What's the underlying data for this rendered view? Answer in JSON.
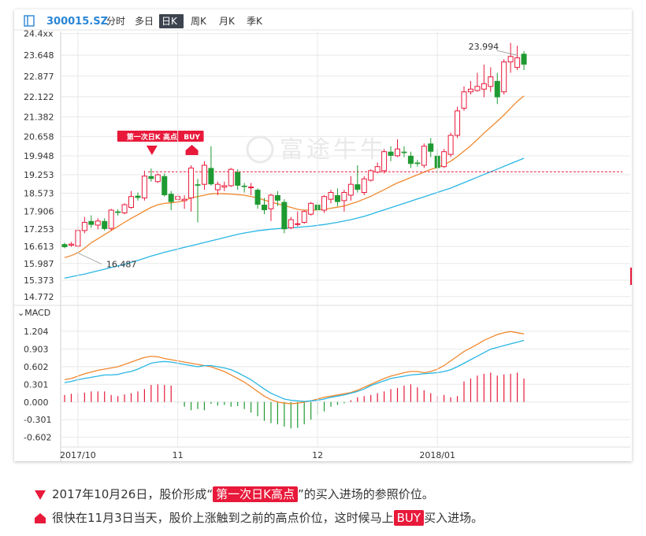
{
  "colors": {
    "up": "#e8193a",
    "down": "#1f9a32",
    "ma_short": "#f0882e",
    "ma_long": "#28b6e4",
    "macd_dif": "#28b6e4",
    "macd_dea": "#f0882e",
    "marker": "#e8193a",
    "grid": "#e8e8e8",
    "axis_text": "#333333"
  },
  "toolbar": {
    "code": "300015.SZ",
    "tabs": [
      {
        "label": "分时",
        "active": false
      },
      {
        "label": "多日",
        "active": false
      },
      {
        "label": "日K",
        "active": true
      },
      {
        "label": "周K",
        "active": false
      },
      {
        "label": "月K",
        "active": false
      },
      {
        "label": "季K",
        "active": false
      }
    ]
  },
  "watermark": "富途牛牛",
  "chart_data": [
    {
      "type": "candlestick",
      "title": "300015.SZ 日K",
      "y_ticks": [
        "24.4xx",
        "23.648",
        "22.877",
        "22.122",
        "21.382",
        "20.658",
        "19.948",
        "19.253",
        "18.573",
        "17.906",
        "17.253",
        "16.613",
        "15.987",
        "15.373",
        "14.772"
      ],
      "y_tick_values": [
        24.443,
        23.648,
        22.877,
        22.122,
        21.382,
        20.658,
        19.948,
        19.253,
        18.573,
        17.906,
        17.253,
        16.613,
        15.987,
        15.373,
        14.772
      ],
      "ylim": [
        14.65,
        24.52
      ],
      "x_ticks": [
        {
          "label": "2017/10",
          "index": 2
        },
        {
          "label": "11",
          "index": 17
        },
        {
          "label": "12",
          "index": 38
        },
        {
          "label": "2018/01",
          "index": 56
        }
      ],
      "candles": [
        [
          16.7,
          16.59,
          16.75,
          16.55
        ],
        [
          16.66,
          16.7,
          16.78,
          16.6
        ],
        [
          16.63,
          17.2,
          17.35,
          16.55
        ],
        [
          17.2,
          17.5,
          17.7,
          17.1
        ],
        [
          17.55,
          17.41,
          17.76,
          17.3
        ],
        [
          17.4,
          17.55,
          17.65,
          17.25
        ],
        [
          17.55,
          17.26,
          17.65,
          17.2
        ],
        [
          17.28,
          17.95,
          18.0,
          17.2
        ],
        [
          17.9,
          17.85,
          17.98,
          17.75
        ],
        [
          17.85,
          18.15,
          18.2,
          17.8
        ],
        [
          18.05,
          18.45,
          18.65,
          18.0
        ],
        [
          18.48,
          18.4,
          18.6,
          18.3
        ],
        [
          18.4,
          19.2,
          19.4,
          18.3
        ],
        [
          19.2,
          19.1,
          19.48,
          19.0
        ],
        [
          19.0,
          19.25,
          19.3,
          18.95
        ],
        [
          19.2,
          18.5,
          19.3,
          18.45
        ],
        [
          18.55,
          18.25,
          18.65,
          17.95
        ],
        [
          18.35,
          18.45,
          18.55,
          18.2
        ],
        [
          18.3,
          18.35,
          18.5,
          18.0
        ],
        [
          18.4,
          19.5,
          19.6,
          17.9
        ],
        [
          18.9,
          18.85,
          19.1,
          17.5
        ],
        [
          18.9,
          19.6,
          19.75,
          18.7
        ],
        [
          19.5,
          18.9,
          20.3,
          18.85
        ],
        [
          18.7,
          18.9,
          19.0,
          18.5
        ],
        [
          18.8,
          18.85,
          19.0,
          18.65
        ],
        [
          18.85,
          19.45,
          19.5,
          18.8
        ],
        [
          19.35,
          18.85,
          19.45,
          18.7
        ],
        [
          18.85,
          18.8,
          18.95,
          18.6
        ],
        [
          18.8,
          18.8,
          18.95,
          18.5
        ],
        [
          18.7,
          18.15,
          18.75,
          18.0
        ],
        [
          18.15,
          17.95,
          18.4,
          17.8
        ],
        [
          18.0,
          18.5,
          18.55,
          17.55
        ],
        [
          18.5,
          18.3,
          18.65,
          18.1
        ],
        [
          18.25,
          17.25,
          18.35,
          17.1
        ],
        [
          17.3,
          17.6,
          17.7,
          17.25
        ],
        [
          17.45,
          17.45,
          17.9,
          17.35
        ],
        [
          17.5,
          17.9,
          17.95,
          17.45
        ],
        [
          17.8,
          18.2,
          18.25,
          17.75
        ],
        [
          18.15,
          17.95,
          18.3,
          17.7
        ],
        [
          17.95,
          18.45,
          18.5,
          17.85
        ],
        [
          18.35,
          18.6,
          18.7,
          18.2
        ],
        [
          18.5,
          18.25,
          18.75,
          18.1
        ],
        [
          18.3,
          18.6,
          18.7,
          17.9
        ],
        [
          18.5,
          18.9,
          19.2,
          18.3
        ],
        [
          18.9,
          18.7,
          19.6,
          18.6
        ],
        [
          18.6,
          19.1,
          19.2,
          18.5
        ],
        [
          19.05,
          19.4,
          19.45,
          19.0
        ],
        [
          19.35,
          19.55,
          19.7,
          19.3
        ],
        [
          19.4,
          20.1,
          20.2,
          19.3
        ],
        [
          20.1,
          19.95,
          20.3,
          19.75
        ],
        [
          19.95,
          20.2,
          20.55,
          19.9
        ],
        [
          20.1,
          20.05,
          20.3,
          19.9
        ],
        [
          19.95,
          19.65,
          20.1,
          19.5
        ],
        [
          19.7,
          19.65,
          19.8,
          19.55
        ],
        [
          19.6,
          20.3,
          20.4,
          19.5
        ],
        [
          20.4,
          20.1,
          20.6,
          19.9
        ],
        [
          19.95,
          19.5,
          20.2,
          19.3
        ],
        [
          19.55,
          20.1,
          20.2,
          19.5
        ],
        [
          20.0,
          20.7,
          20.8,
          19.9
        ],
        [
          20.7,
          21.6,
          21.75,
          20.6
        ],
        [
          21.7,
          22.3,
          22.5,
          21.6
        ],
        [
          22.3,
          22.4,
          22.7,
          22.2
        ],
        [
          22.35,
          22.5,
          23.0,
          22.3
        ],
        [
          22.4,
          22.6,
          23.3,
          22.1
        ],
        [
          22.5,
          22.85,
          23.2,
          22.3
        ],
        [
          22.7,
          22.1,
          23.0,
          21.85
        ],
        [
          22.3,
          23.4,
          23.5,
          22.2
        ],
        [
          23.4,
          23.6,
          24.1,
          23.0
        ],
        [
          23.2,
          23.55,
          24.0,
          23.1
        ],
        [
          23.7,
          23.3,
          23.8,
          23.1
        ]
      ],
      "ma_short": [
        16.2,
        16.28,
        16.38,
        16.55,
        16.75,
        16.9,
        17.05,
        17.2,
        17.35,
        17.5,
        17.65,
        17.78,
        17.92,
        18.05,
        18.15,
        18.2,
        18.22,
        18.25,
        18.3,
        18.4,
        18.45,
        18.5,
        18.55,
        18.56,
        18.55,
        18.54,
        18.52,
        18.5,
        18.45,
        18.4,
        18.32,
        18.25,
        18.18,
        18.12,
        18.05,
        17.98,
        17.95,
        17.95,
        17.96,
        17.98,
        18.02,
        18.06,
        18.1,
        18.18,
        18.26,
        18.36,
        18.46,
        18.58,
        18.7,
        18.83,
        18.95,
        19.05,
        19.15,
        19.25,
        19.35,
        19.45,
        19.52,
        19.62,
        19.75,
        19.92,
        20.12,
        20.32,
        20.55,
        20.78,
        21.0,
        21.22,
        21.45,
        21.7,
        21.95,
        22.15
      ],
      "ma_long": [
        15.45,
        15.5,
        15.55,
        15.6,
        15.66,
        15.72,
        15.78,
        15.84,
        15.9,
        15.96,
        16.03,
        16.1,
        16.18,
        16.26,
        16.33,
        16.4,
        16.46,
        16.52,
        16.58,
        16.64,
        16.7,
        16.76,
        16.82,
        16.88,
        16.94,
        17.0,
        17.06,
        17.11,
        17.15,
        17.19,
        17.22,
        17.25,
        17.27,
        17.29,
        17.3,
        17.32,
        17.34,
        17.36,
        17.39,
        17.42,
        17.46,
        17.5,
        17.55,
        17.6,
        17.66,
        17.72,
        17.8,
        17.88,
        17.96,
        18.04,
        18.12,
        18.2,
        18.28,
        18.36,
        18.44,
        18.52,
        18.6,
        18.68,
        18.76,
        18.86,
        18.96,
        19.06,
        19.16,
        19.26,
        19.36,
        19.46,
        19.56,
        19.66,
        19.76,
        19.86
      ],
      "annotations": [
        {
          "label": "16.487",
          "value": 16.487,
          "index": 2
        },
        {
          "label": "23.994",
          "value": 23.994,
          "index": 68
        },
        {
          "label": "第一次日K 高点",
          "marker": "down-triangle",
          "index": 13,
          "value": 19.36
        },
        {
          "label": "BUY",
          "marker": "house",
          "index": 19,
          "value": 19.36
        }
      ],
      "reference_price": 19.36
    },
    {
      "type": "macd",
      "title": "MACD",
      "y_ticks": [
        "1.204",
        "0.903",
        "0.602",
        "0.301",
        "0.000",
        "-0.301",
        "-0.602"
      ],
      "y_tick_values": [
        1.204,
        0.903,
        0.602,
        0.301,
        0.0,
        -0.301,
        -0.602
      ],
      "ylim": [
        -0.66,
        1.27
      ],
      "hist": [
        0.12,
        0.14,
        0.15,
        0.16,
        0.18,
        0.18,
        0.18,
        0.12,
        0.1,
        0.13,
        0.15,
        0.18,
        0.22,
        0.29,
        0.3,
        0.29,
        0.28,
        -0.02,
        -0.08,
        -0.14,
        -0.12,
        -0.14,
        -0.03,
        -0.06,
        -0.05,
        -0.08,
        -0.07,
        -0.12,
        -0.18,
        -0.24,
        -0.32,
        -0.36,
        -0.38,
        -0.42,
        -0.45,
        -0.44,
        -0.38,
        -0.3,
        -0.22,
        -0.16,
        -0.08,
        -0.05,
        -0.02,
        0.03,
        0.08,
        0.1,
        0.12,
        0.15,
        0.18,
        0.22,
        0.24,
        0.28,
        0.3,
        0.25,
        0.2,
        0.15,
        0.1,
        0.12,
        0.08,
        0.1,
        0.35,
        0.4,
        0.45,
        0.48,
        0.5,
        0.45,
        0.47,
        0.48,
        0.5,
        0.4
      ],
      "dif": [
        0.33,
        0.35,
        0.38,
        0.4,
        0.42,
        0.44,
        0.46,
        0.46,
        0.47,
        0.5,
        0.52,
        0.56,
        0.61,
        0.66,
        0.68,
        0.69,
        0.68,
        0.66,
        0.64,
        0.62,
        0.6,
        0.62,
        0.62,
        0.6,
        0.58,
        0.55,
        0.5,
        0.44,
        0.38,
        0.3,
        0.22,
        0.15,
        0.1,
        0.05,
        0.03,
        0.02,
        0.01,
        0.02,
        0.03,
        0.05,
        0.08,
        0.1,
        0.12,
        0.15,
        0.18,
        0.22,
        0.28,
        0.32,
        0.36,
        0.4,
        0.42,
        0.44,
        0.46,
        0.47,
        0.48,
        0.49,
        0.5,
        0.52,
        0.55,
        0.6,
        0.66,
        0.72,
        0.78,
        0.84,
        0.9,
        0.93,
        0.96,
        0.99,
        1.02,
        1.05
      ],
      "dea": [
        0.38,
        0.4,
        0.44,
        0.48,
        0.51,
        0.54,
        0.56,
        0.58,
        0.6,
        0.64,
        0.68,
        0.72,
        0.76,
        0.78,
        0.77,
        0.74,
        0.72,
        0.7,
        0.68,
        0.66,
        0.64,
        0.62,
        0.6,
        0.56,
        0.52,
        0.46,
        0.4,
        0.34,
        0.26,
        0.18,
        0.1,
        0.04,
        0.0,
        -0.02,
        -0.03,
        -0.02,
        0.0,
        0.02,
        0.05,
        0.08,
        0.1,
        0.12,
        0.14,
        0.16,
        0.2,
        0.25,
        0.3,
        0.35,
        0.4,
        0.44,
        0.47,
        0.5,
        0.52,
        0.52,
        0.5,
        0.52,
        0.56,
        0.62,
        0.7,
        0.78,
        0.86,
        0.92,
        0.98,
        1.05,
        1.1,
        1.15,
        1.18,
        1.2,
        1.18,
        1.16
      ]
    }
  ],
  "notes": [
    {
      "marker": "down-triangle",
      "before": "2017年10月26日，股价形成“",
      "highlight": "第一次日K高点",
      "after": "”的买入进场的参照价位。"
    },
    {
      "marker": "house",
      "before": "很快在11月3日当天，股价上涨触到之前的高点价位，这时候马上",
      "highlight": "BUY",
      "after": "买入进场。"
    }
  ]
}
